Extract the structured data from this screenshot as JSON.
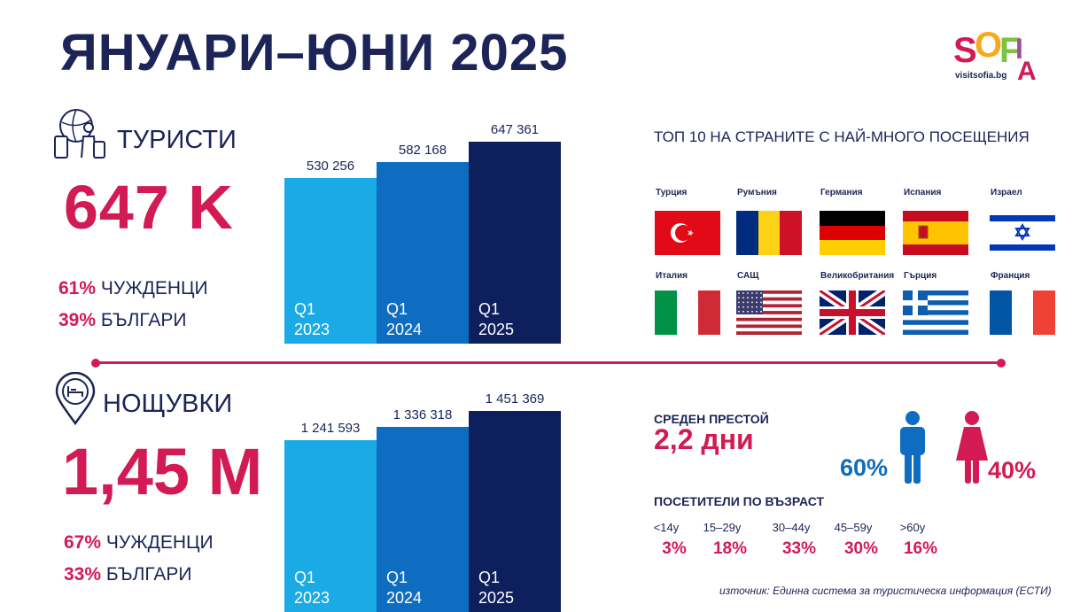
{
  "title": "ЯНУАРИ–ЮНИ 2025",
  "logo": {
    "word": "SOFIA",
    "site": "visitsofia.bg"
  },
  "tourists": {
    "label": "ТУРИСТИ",
    "total": "647 K",
    "foreign_pct": "61%",
    "foreign_label": " ЧУЖДЕНЦИ",
    "bulgarian_pct": "39%",
    "bulgarian_label": " БЪЛГАРИ",
    "bars": [
      {
        "value_label": "530 256",
        "q": "Q1",
        "year": "2023",
        "value": 530256,
        "color": "#1aaae6"
      },
      {
        "value_label": "582 168",
        "q": "Q1",
        "year": "2024",
        "value": 582168,
        "color": "#0e6dc0"
      },
      {
        "value_label": "647 361",
        "q": "Q1",
        "year": "2025",
        "value": 647361,
        "color": "#0d1f5c"
      }
    ]
  },
  "nights": {
    "label": "НОЩУВКИ",
    "total": "1,45 M",
    "foreign_pct": "67%",
    "foreign_label": " ЧУЖДЕНЦИ",
    "bulgarian_pct": "33%",
    "bulgarian_label": " БЪЛГАРИ",
    "bars": [
      {
        "value_label": "1 241 593",
        "q": "Q1",
        "year": "2023",
        "value": 1241593,
        "color": "#1aaae6"
      },
      {
        "value_label": "1 336 318",
        "q": "Q1",
        "year": "2024",
        "value": 1336318,
        "color": "#0e6dc0"
      },
      {
        "value_label": "1 451 369",
        "q": "Q1",
        "year": "2025",
        "value": 1451369,
        "color": "#0d1f5c"
      }
    ]
  },
  "top10": {
    "title": "ТОП 10 НА СТРАНИТЕ С НАЙ-МНОГО ПОСЕЩЕНИЯ",
    "countries": [
      {
        "name": "Турция",
        "flag": "turkey"
      },
      {
        "name": "Румъния",
        "flag": "romania"
      },
      {
        "name": "Германия",
        "flag": "germany"
      },
      {
        "name": "Испания",
        "flag": "spain"
      },
      {
        "name": "Израел",
        "flag": "israel"
      },
      {
        "name": "Италия",
        "flag": "italy"
      },
      {
        "name": "САЩ",
        "flag": "usa"
      },
      {
        "name": "Великобритания",
        "flag": "uk"
      },
      {
        "name": "Гърция",
        "flag": "greece"
      },
      {
        "name": "Франция",
        "flag": "france"
      }
    ]
  },
  "stay": {
    "label": "СРЕДЕН ПРЕСТОЙ",
    "value": "2,2 дни"
  },
  "gender": {
    "male_pct": "60%",
    "female_pct": "40%",
    "male_color": "#0e6dc0",
    "female_color": "#d21a54"
  },
  "age": {
    "title": "ПОСЕТИТЕЛИ ПО ВЪЗРАСТ",
    "groups": [
      {
        "label": "<14y",
        "pct": "3%"
      },
      {
        "label": "15–29y",
        "pct": "18%"
      },
      {
        "label": "30–44y",
        "pct": "33%"
      },
      {
        "label": "45–59y",
        "pct": "30%"
      },
      {
        "label": ">60y",
        "pct": "16%"
      }
    ]
  },
  "source": "източник: Единна система за туристическа информация (ЕСТИ)",
  "colors": {
    "accent": "#d21a54",
    "navy": "#1c2458"
  }
}
